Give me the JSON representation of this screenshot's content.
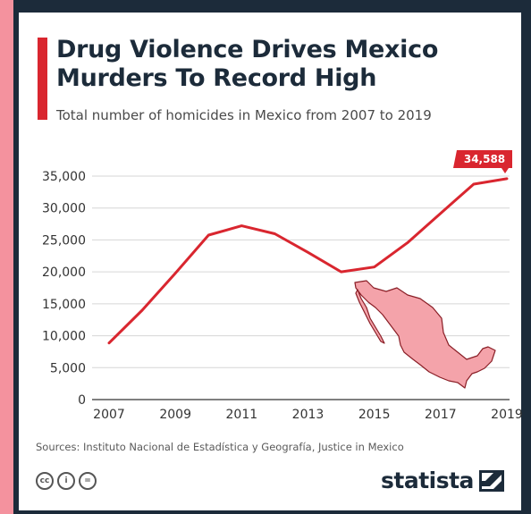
{
  "header": {
    "title_line1": "Drug Violence Drives Mexico",
    "title_line2": "Murders To Record High",
    "subtitle": "Total number of homicides in Mexico from 2007 to 2019"
  },
  "chart_data": {
    "type": "line",
    "title": "Drug Violence Drives Mexico Murders To Record High",
    "subtitle": "Total number of homicides in Mexico from 2007 to 2019",
    "x": [
      2007,
      2008,
      2009,
      2010,
      2011,
      2012,
      2013,
      2014,
      2015,
      2016,
      2017,
      2018,
      2019
    ],
    "series": [
      {
        "values": [
          8867,
          14006,
          19803,
          25757,
          27213,
          25967,
          23063,
          20010,
          20762,
          24559,
          29168,
          33743,
          34588
        ]
      }
    ],
    "x_ticks": [
      "2007",
      "2009",
      "2011",
      "2013",
      "2015",
      "2017",
      "2019"
    ],
    "y_ticks": [
      "0",
      "5,000",
      "10,000",
      "15,000",
      "20,000",
      "25,000",
      "30,000",
      "35,000"
    ],
    "ylim": [
      0,
      35000
    ],
    "grid": true,
    "annotation": {
      "x": 2019,
      "label": "34,588"
    },
    "line_color": "#d9262f"
  },
  "footer": {
    "source": "Sources: Instituto Nacional de Estadística y Geografía, Justice in Mexico",
    "license_icons": [
      "cc-icon",
      "by-icon",
      "nd-icon"
    ],
    "license_glyphs": [
      "cc",
      "i",
      "="
    ],
    "brand": "statista"
  },
  "colors": {
    "background": "#f4929e",
    "frame": "#1c2b3a",
    "accent": "#d9262f",
    "map_fill": "#f4a3aa"
  }
}
